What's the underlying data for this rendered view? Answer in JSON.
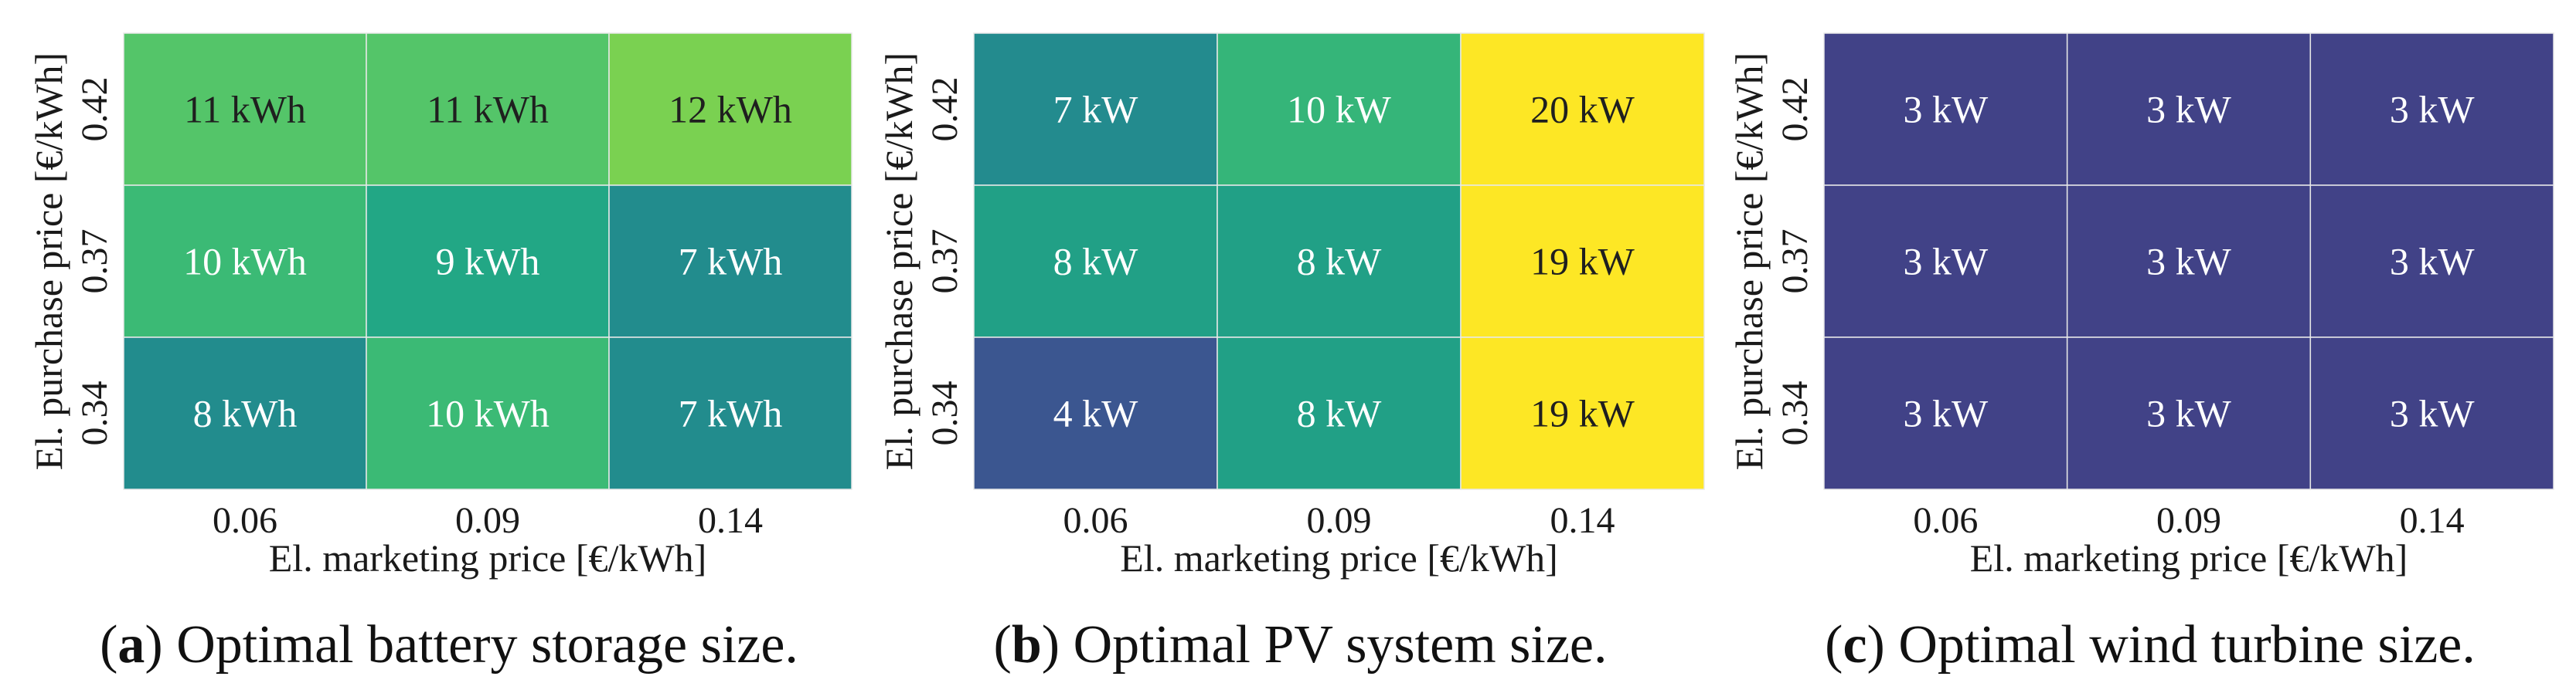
{
  "figure": {
    "colors": {
      "grid_line": "#e8e8e8",
      "label_dark": "#1f1f1f",
      "label_light": "#ffffff"
    }
  },
  "chart_data": [
    {
      "type": "heatmap",
      "panel_id": "a",
      "panel_letter": "a",
      "caption_text": "Optimal battery storage size.",
      "unit": "kWh",
      "xlabel": "El. marketing price [€/kWh]",
      "ylabel": "El. purchase price [€/kWh]",
      "x_categories": [
        "0.06",
        "0.09",
        "0.14"
      ],
      "y_categories": [
        "0.42",
        "0.37",
        "0.34"
      ],
      "values": [
        [
          11,
          11,
          12
        ],
        [
          10,
          9,
          7
        ],
        [
          8,
          10,
          7
        ]
      ],
      "labels": [
        [
          "11 kWh",
          "11 kWh",
          "12 kWh"
        ],
        [
          "10 kWh",
          "9 kWh",
          "7 kWh"
        ],
        [
          "8 kWh",
          "10 kWh",
          "7 kWh"
        ]
      ],
      "cell_colors": [
        [
          "#54c569",
          "#54c569",
          "#7ad151"
        ],
        [
          "#3bba75",
          "#22a785",
          "#228c8d"
        ],
        [
          "#228c8d",
          "#3bba75",
          "#228c8d"
        ]
      ],
      "label_colors": [
        [
          "#1f1f1f",
          "#1f1f1f",
          "#1f1f1f"
        ],
        [
          "#ffffff",
          "#ffffff",
          "#ffffff"
        ],
        [
          "#ffffff",
          "#ffffff",
          "#ffffff"
        ]
      ]
    },
    {
      "type": "heatmap",
      "panel_id": "b",
      "panel_letter": "b",
      "caption_text": "Optimal PV system size.",
      "unit": "kW",
      "xlabel": "El. marketing price [€/kWh]",
      "ylabel": "El. purchase price [€/kWh]",
      "x_categories": [
        "0.06",
        "0.09",
        "0.14"
      ],
      "y_categories": [
        "0.42",
        "0.37",
        "0.34"
      ],
      "values": [
        [
          7,
          10,
          20
        ],
        [
          8,
          8,
          19
        ],
        [
          4,
          8,
          19
        ]
      ],
      "labels": [
        [
          "7 kW",
          "10 kW",
          "20 kW"
        ],
        [
          "8 kW",
          "8 kW",
          "19 kW"
        ],
        [
          "4 kW",
          "8 kW",
          "19 kW"
        ]
      ],
      "cell_colors": [
        [
          "#238b8e",
          "#35b579",
          "#fde725"
        ],
        [
          "#21a086",
          "#21a086",
          "#fde725"
        ],
        [
          "#3b5690",
          "#21a086",
          "#fde725"
        ]
      ],
      "label_colors": [
        [
          "#ffffff",
          "#ffffff",
          "#1f1f1f"
        ],
        [
          "#ffffff",
          "#ffffff",
          "#1f1f1f"
        ],
        [
          "#ffffff",
          "#ffffff",
          "#1f1f1f"
        ]
      ]
    },
    {
      "type": "heatmap",
      "panel_id": "c",
      "panel_letter": "c",
      "caption_text": "Optimal wind turbine size.",
      "unit": "kW",
      "xlabel": "El. marketing price [€/kWh]",
      "ylabel": "El. purchase price [€/kWh]",
      "x_categories": [
        "0.06",
        "0.09",
        "0.14"
      ],
      "y_categories": [
        "0.42",
        "0.37",
        "0.34"
      ],
      "values": [
        [
          3,
          3,
          3
        ],
        [
          3,
          3,
          3
        ],
        [
          3,
          3,
          3
        ]
      ],
      "labels": [
        [
          "3 kW",
          "3 kW",
          "3 kW"
        ],
        [
          "3 kW",
          "3 kW",
          "3 kW"
        ],
        [
          "3 kW",
          "3 kW",
          "3 kW"
        ]
      ],
      "cell_colors": [
        [
          "#414287",
          "#414287",
          "#414287"
        ],
        [
          "#414287",
          "#414287",
          "#414287"
        ],
        [
          "#414287",
          "#414287",
          "#414287"
        ]
      ],
      "label_colors": [
        [
          "#ffffff",
          "#ffffff",
          "#ffffff"
        ],
        [
          "#ffffff",
          "#ffffff",
          "#ffffff"
        ],
        [
          "#ffffff",
          "#ffffff",
          "#ffffff"
        ]
      ]
    }
  ]
}
